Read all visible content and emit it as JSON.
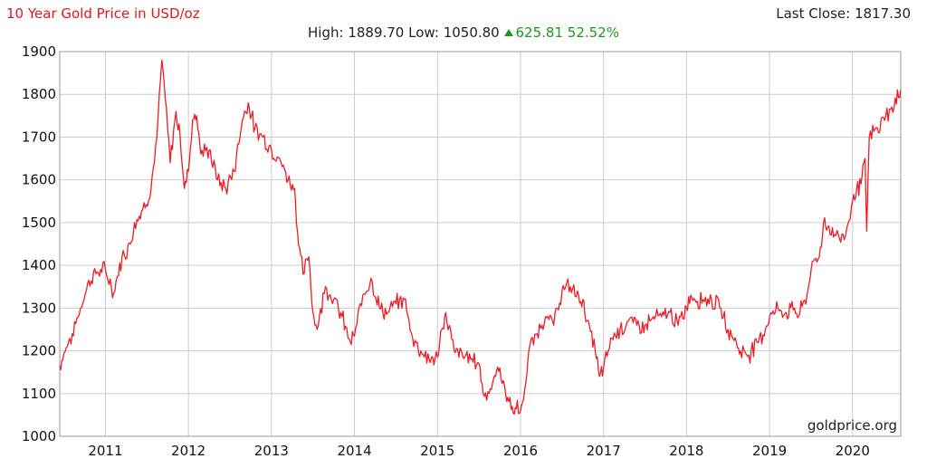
{
  "header": {
    "title": "10 Year Gold Price in USD/oz",
    "last_close_label": "Last Close:",
    "last_close_value": "1817.30",
    "high_label": "High:",
    "high_value": "1889.70",
    "low_label": "Low:",
    "low_value": "1050.80",
    "change_value": "625.81",
    "change_percent": "52.52%"
  },
  "source_label": "goldprice.org",
  "colors": {
    "line": "#ee1c24",
    "title": "#e8141c",
    "positive": "#1a9a1a",
    "grid": "#cccccc"
  },
  "chart_data": {
    "type": "line",
    "title": "10 Year Gold Price in USD/oz",
    "xlabel": "",
    "ylabel": "",
    "xlim": [
      2010.45,
      2020.58
    ],
    "ylim": [
      1000,
      1900
    ],
    "xticks": [
      2011,
      2012,
      2013,
      2014,
      2015,
      2016,
      2017,
      2018,
      2019,
      2020
    ],
    "yticks": [
      1000,
      1100,
      1200,
      1300,
      1400,
      1500,
      1600,
      1700,
      1800,
      1900
    ],
    "grid": true,
    "series": [
      {
        "x": [
          2010.45,
          2010.5,
          2010.6,
          2010.7,
          2010.8,
          2010.9,
          2011.0,
          2011.1,
          2011.2,
          2011.3,
          2011.35,
          2011.45,
          2011.55,
          2011.62,
          2011.68,
          2011.72,
          2011.78,
          2011.85,
          2011.9,
          2011.95,
          2012.0,
          2012.05,
          2012.1,
          2012.15,
          2012.25,
          2012.35,
          2012.45,
          2012.55,
          2012.65,
          2012.72,
          2012.8,
          2012.9,
          2013.0,
          2013.1,
          2013.2,
          2013.28,
          2013.3,
          2013.38,
          2013.45,
          2013.5,
          2013.55,
          2013.65,
          2013.75,
          2013.85,
          2013.95,
          2014.0,
          2014.1,
          2014.2,
          2014.3,
          2014.4,
          2014.5,
          2014.6,
          2014.7,
          2014.8,
          2014.9,
          2015.0,
          2015.05,
          2015.1,
          2015.2,
          2015.3,
          2015.4,
          2015.5,
          2015.55,
          2015.65,
          2015.7,
          2015.75,
          2015.82,
          2015.9,
          2015.95,
          2016.0,
          2016.05,
          2016.1,
          2016.2,
          2016.3,
          2016.4,
          2016.5,
          2016.6,
          2016.7,
          2016.75,
          2016.8,
          2016.9,
          2016.95,
          2017.0,
          2017.1,
          2017.2,
          2017.3,
          2017.4,
          2017.5,
          2017.6,
          2017.7,
          2017.8,
          2017.9,
          2018.0,
          2018.05,
          2018.1,
          2018.2,
          2018.3,
          2018.4,
          2018.5,
          2018.6,
          2018.65,
          2018.75,
          2018.85,
          2018.95,
          2019.0,
          2019.1,
          2019.2,
          2019.3,
          2019.35,
          2019.45,
          2019.5,
          2019.6,
          2019.65,
          2019.7,
          2019.8,
          2019.9,
          2020.0,
          2020.05,
          2020.1,
          2020.15,
          2020.17,
          2020.2,
          2020.3,
          2020.4,
          2020.5,
          2020.58
        ],
        "y": [
          1165,
          1195,
          1240,
          1300,
          1365,
          1385,
          1390,
          1335,
          1420,
          1450,
          1500,
          1530,
          1580,
          1700,
          1880,
          1790,
          1640,
          1760,
          1700,
          1580,
          1620,
          1740,
          1750,
          1660,
          1670,
          1600,
          1580,
          1620,
          1740,
          1780,
          1720,
          1700,
          1670,
          1650,
          1600,
          1580,
          1500,
          1380,
          1420,
          1290,
          1250,
          1350,
          1320,
          1280,
          1220,
          1235,
          1330,
          1370,
          1300,
          1290,
          1310,
          1320,
          1230,
          1200,
          1180,
          1185,
          1250,
          1290,
          1200,
          1190,
          1180,
          1170,
          1100,
          1110,
          1140,
          1160,
          1100,
          1070,
          1065,
          1060,
          1110,
          1200,
          1240,
          1280,
          1260,
          1340,
          1350,
          1330,
          1320,
          1270,
          1200,
          1140,
          1160,
          1230,
          1250,
          1270,
          1260,
          1260,
          1280,
          1280,
          1290,
          1260,
          1300,
          1330,
          1320,
          1320,
          1320,
          1300,
          1250,
          1220,
          1200,
          1190,
          1220,
          1250,
          1280,
          1300,
          1290,
          1300,
          1280,
          1330,
          1390,
          1420,
          1500,
          1490,
          1470,
          1460,
          1550,
          1580,
          1590,
          1650,
          1480,
          1700,
          1720,
          1750,
          1770,
          1810
        ]
      }
    ]
  }
}
